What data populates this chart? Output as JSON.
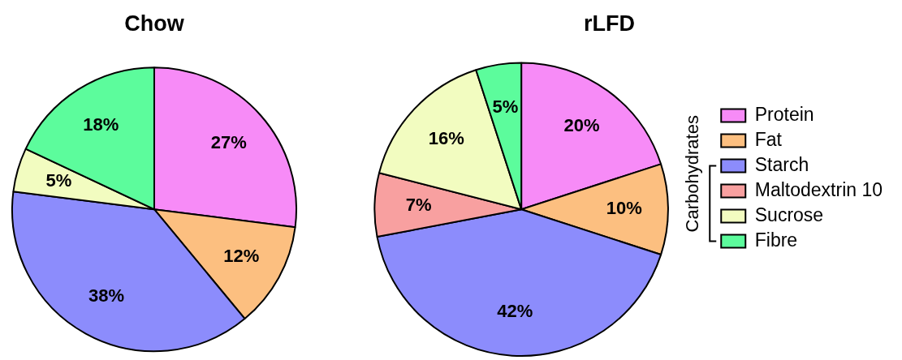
{
  "chart_data": [
    {
      "type": "pie",
      "title": "Chow",
      "categories": [
        null,
        null,
        null,
        null,
        null
      ],
      "values": [
        27,
        12,
        38,
        5,
        18
      ],
      "value_labels": [
        "27%",
        "12%",
        "38%",
        "5%",
        "18%"
      ],
      "colors": [
        "#f78bf7",
        "#fcbf80",
        "#8c8cfc",
        "#f2fcc0",
        "#5cfc9c"
      ],
      "legend": false
    },
    {
      "type": "pie",
      "title": "rLFD",
      "categories": [
        "Protein",
        "Fat",
        "Starch",
        "Maltodextrin 10",
        "Sucrose",
        "Fibre"
      ],
      "values": [
        20,
        10,
        42,
        7,
        16,
        5
      ],
      "value_labels": [
        "20%",
        "10%",
        "42%",
        "7%",
        "16%",
        "5%"
      ],
      "colors": [
        "#f78bf7",
        "#fcbf80",
        "#8c8cfc",
        "#f8a0a0",
        "#f2fcc0",
        "#5cfc9c"
      ],
      "legend": "right",
      "annotations": [
        "Carbohydrates"
      ]
    }
  ]
}
